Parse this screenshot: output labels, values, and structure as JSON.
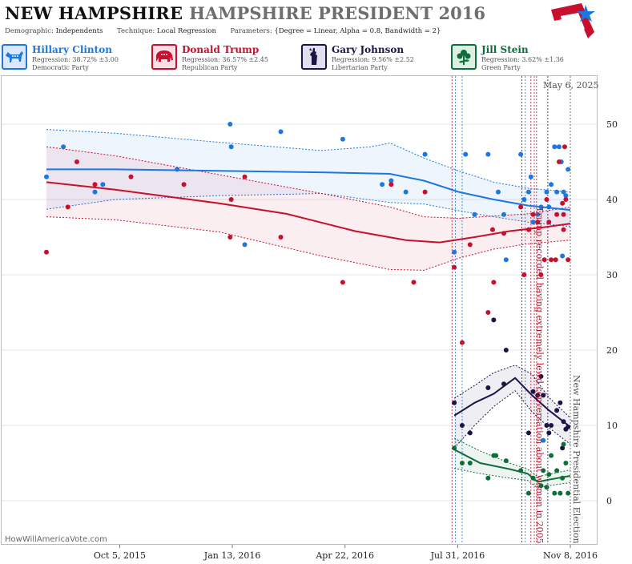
{
  "header": {
    "state": "NEW HAMPSHIRE",
    "race": "HAMPSHIRE PRESIDENT 2016",
    "demographic_key": "Demographic:",
    "demographic_value": "Independents",
    "technique_key": "Technique:",
    "technique_value": "Local Regression",
    "parameters_key": "Parameters:",
    "parameters_value": "{Degree = Linear, Alpha = 0.8, Bandwidth = 2}"
  },
  "candidates": [
    {
      "name": "Hillary Clinton",
      "regression": "Regression: 38.72% ±3.00",
      "party": "Democratic Party",
      "color": "#1a78e0",
      "bg": "#dbe8fb",
      "icon": "donkey-icon"
    },
    {
      "name": "Donald Trump",
      "regression": "Regression: 36.57% ±2.45",
      "party": "Republican Party",
      "color": "#c8102e",
      "bg": "#fbdfe3",
      "icon": "elephant-icon"
    },
    {
      "name": "Gary Johnson",
      "regression": "Regression: 9.56% ±2.52",
      "party": "Libertarian Party",
      "color": "#1b1446",
      "bg": "#e2e0ee",
      "icon": "liberty-statue-icon"
    },
    {
      "name": "Jill Stein",
      "regression": "Regression: 3.62% ±1.36",
      "party": "Green Party",
      "color": "#0e6e3a",
      "bg": "#dcefe3",
      "icon": "flower-icon"
    }
  ],
  "date_label": "May 6, 2025",
  "credit": "HowWillAmericaVote.com",
  "chart_data": {
    "type": "scatter",
    "x_axis": {
      "ticks": [
        "Oct 5, 2015",
        "Jan 13, 2016",
        "Apr 22, 2016",
        "Jul 31, 2016",
        "Nov 8, 2016"
      ],
      "range": [
        "2015-08-01",
        "2016-11-08"
      ]
    },
    "y_axis": {
      "ticks": [
        0,
        10,
        20,
        30,
        40,
        50
      ],
      "range": [
        -5,
        55
      ],
      "side": "right"
    },
    "annotations": [
      {
        "text": "Trump recorded having extremely lewd conversation about women in 2005",
        "date": "2016-10-07",
        "color": "#c8102e"
      },
      {
        "text": "New Hampshire Presidential Election",
        "date": "2016-11-08",
        "color": "#555555"
      }
    ],
    "series": [
      {
        "name": "Hillary Clinton",
        "color": "#1a78e0",
        "points": [
          [
            "2015-08-01",
            43
          ],
          [
            "2015-08-16",
            47
          ],
          [
            "2015-09-13",
            41
          ],
          [
            "2015-09-20",
            42
          ],
          [
            "2015-11-25",
            44
          ],
          [
            "2016-01-11",
            50
          ],
          [
            "2016-01-12",
            47
          ],
          [
            "2016-01-24",
            34
          ],
          [
            "2016-02-25",
            49
          ],
          [
            "2016-04-20",
            48
          ],
          [
            "2016-05-25",
            42
          ],
          [
            "2016-06-02",
            42.5
          ],
          [
            "2016-06-15",
            41
          ],
          [
            "2016-07-02",
            46
          ],
          [
            "2016-07-28",
            33
          ],
          [
            "2016-08-07",
            46
          ],
          [
            "2016-08-15",
            38
          ],
          [
            "2016-08-27",
            46
          ],
          [
            "2016-09-05",
            41
          ],
          [
            "2016-09-10",
            38
          ],
          [
            "2016-09-12",
            32
          ],
          [
            "2016-09-25",
            46
          ],
          [
            "2016-09-28",
            40
          ],
          [
            "2016-10-02",
            41
          ],
          [
            "2016-10-04",
            43
          ],
          [
            "2016-10-06",
            37
          ],
          [
            "2016-10-10",
            38
          ],
          [
            "2016-10-13",
            39
          ],
          [
            "2016-10-15",
            8
          ],
          [
            "2016-10-18",
            41
          ],
          [
            "2016-10-20",
            39
          ],
          [
            "2016-10-22",
            42
          ],
          [
            "2016-10-25",
            47
          ],
          [
            "2016-10-27",
            41
          ],
          [
            "2016-10-29",
            47
          ],
          [
            "2016-10-31",
            45
          ],
          [
            "2016-11-01",
            32.5
          ],
          [
            "2016-11-02",
            41
          ],
          [
            "2016-11-04",
            40.5
          ],
          [
            "2016-11-06",
            44
          ]
        ],
        "trend": [
          [
            "2015-08-01",
            44
          ],
          [
            "2015-10-01",
            44
          ],
          [
            "2016-01-01",
            43.8
          ],
          [
            "2016-04-01",
            43.6
          ],
          [
            "2016-06-01",
            43.4
          ],
          [
            "2016-07-01",
            42.5
          ],
          [
            "2016-08-01",
            41
          ],
          [
            "2016-09-01",
            40
          ],
          [
            "2016-10-01",
            39.2
          ],
          [
            "2016-11-08",
            38.6
          ]
        ],
        "band_upper": [
          [
            "2015-08-01",
            49.3
          ],
          [
            "2015-10-01",
            48.8
          ],
          [
            "2016-01-01",
            47.6
          ],
          [
            "2016-04-01",
            46.5
          ],
          [
            "2016-05-15",
            47
          ],
          [
            "2016-06-01",
            47.5
          ],
          [
            "2016-07-01",
            45.5
          ],
          [
            "2016-08-01",
            43.8
          ],
          [
            "2016-09-01",
            42.3
          ],
          [
            "2016-10-01",
            41.5
          ],
          [
            "2016-11-08",
            41
          ]
        ],
        "band_lower": [
          [
            "2015-08-01",
            38.7
          ],
          [
            "2015-10-01",
            40
          ],
          [
            "2016-01-01",
            40.5
          ],
          [
            "2016-04-01",
            40.8
          ],
          [
            "2016-06-01",
            39.6
          ],
          [
            "2016-07-01",
            39.4
          ],
          [
            "2016-08-01",
            38.5
          ],
          [
            "2016-09-01",
            37.7
          ],
          [
            "2016-10-01",
            37
          ],
          [
            "2016-11-08",
            36.4
          ]
        ]
      },
      {
        "name": "Donald Trump",
        "color": "#c8102e",
        "points": [
          [
            "2015-08-01",
            33
          ],
          [
            "2015-08-20",
            39
          ],
          [
            "2015-08-28",
            45
          ],
          [
            "2015-09-13",
            42
          ],
          [
            "2015-10-15",
            43
          ],
          [
            "2015-12-01",
            42
          ],
          [
            "2016-01-11",
            35
          ],
          [
            "2016-01-12",
            40
          ],
          [
            "2016-01-24",
            43
          ],
          [
            "2016-02-25",
            35
          ],
          [
            "2016-04-20",
            29
          ],
          [
            "2016-06-02",
            42
          ],
          [
            "2016-06-22",
            29
          ],
          [
            "2016-07-02",
            41
          ],
          [
            "2016-07-28",
            31
          ],
          [
            "2016-08-04",
            21
          ],
          [
            "2016-08-11",
            34
          ],
          [
            "2016-08-27",
            25
          ],
          [
            "2016-08-31",
            36
          ],
          [
            "2016-09-01",
            29
          ],
          [
            "2016-09-10",
            35.5
          ],
          [
            "2016-09-25",
            39
          ],
          [
            "2016-09-28",
            30
          ],
          [
            "2016-10-02",
            36
          ],
          [
            "2016-10-06",
            38
          ],
          [
            "2016-10-10",
            37
          ],
          [
            "2016-10-13",
            30
          ],
          [
            "2016-10-16",
            32
          ],
          [
            "2016-10-18",
            40
          ],
          [
            "2016-10-20",
            37
          ],
          [
            "2016-10-22",
            32
          ],
          [
            "2016-10-26",
            32
          ],
          [
            "2016-10-27",
            38
          ],
          [
            "2016-10-29",
            45
          ],
          [
            "2016-11-01",
            39.5
          ],
          [
            "2016-11-02",
            36
          ],
          [
            "2016-11-02",
            38
          ],
          [
            "2016-11-03",
            47
          ],
          [
            "2016-11-04",
            40
          ],
          [
            "2016-11-06",
            32
          ]
        ],
        "trend": [
          [
            "2015-08-01",
            42.3
          ],
          [
            "2015-10-01",
            41.3
          ],
          [
            "2016-01-01",
            39.5
          ],
          [
            "2016-03-01",
            38.1
          ],
          [
            "2016-05-01",
            35.8
          ],
          [
            "2016-06-15",
            34.6
          ],
          [
            "2016-07-15",
            34.3
          ],
          [
            "2016-08-15",
            35
          ],
          [
            "2016-09-15",
            35.8
          ],
          [
            "2016-10-15",
            36.3
          ],
          [
            "2016-11-08",
            36.8
          ]
        ],
        "band_upper": [
          [
            "2015-08-01",
            47
          ],
          [
            "2015-10-01",
            45.8
          ],
          [
            "2016-01-01",
            43.3
          ],
          [
            "2016-04-01",
            40.8
          ],
          [
            "2016-06-01",
            39
          ],
          [
            "2016-07-01",
            37.7
          ],
          [
            "2016-08-01",
            37.5
          ],
          [
            "2016-09-01",
            37.8
          ],
          [
            "2016-10-01",
            38.1
          ],
          [
            "2016-11-08",
            39
          ]
        ],
        "band_lower": [
          [
            "2015-08-01",
            37.7
          ],
          [
            "2015-10-01",
            37.3
          ],
          [
            "2016-01-01",
            35.7
          ],
          [
            "2016-04-01",
            32.5
          ],
          [
            "2016-06-01",
            30.7
          ],
          [
            "2016-07-01",
            30.6
          ],
          [
            "2016-08-01",
            32.2
          ],
          [
            "2016-09-01",
            33.4
          ],
          [
            "2016-10-01",
            34.1
          ],
          [
            "2016-11-08",
            34.6
          ]
        ]
      },
      {
        "name": "Gary Johnson",
        "color": "#1b1446",
        "points": [
          [
            "2016-07-28",
            13
          ],
          [
            "2016-08-04",
            10
          ],
          [
            "2016-08-11",
            9
          ],
          [
            "2016-08-27",
            15
          ],
          [
            "2016-09-01",
            24
          ],
          [
            "2016-09-10",
            15.5
          ],
          [
            "2016-09-12",
            20
          ],
          [
            "2016-10-02",
            9
          ],
          [
            "2016-10-06",
            14.5
          ],
          [
            "2016-10-10",
            14
          ],
          [
            "2016-10-13",
            16.5
          ],
          [
            "2016-10-15",
            14
          ],
          [
            "2016-10-18",
            10
          ],
          [
            "2016-10-20",
            9
          ],
          [
            "2016-10-22",
            10
          ],
          [
            "2016-10-27",
            12
          ],
          [
            "2016-10-30",
            13
          ],
          [
            "2016-11-01",
            7
          ],
          [
            "2016-11-02",
            10.5
          ],
          [
            "2016-11-04",
            9.5
          ],
          [
            "2016-11-06",
            9.8
          ]
        ],
        "trend": [
          [
            "2016-07-28",
            11.3
          ],
          [
            "2016-08-15",
            13
          ],
          [
            "2016-09-01",
            14.2
          ],
          [
            "2016-09-20",
            16.3
          ],
          [
            "2016-10-05",
            14
          ],
          [
            "2016-10-20",
            12
          ],
          [
            "2016-11-08",
            9.8
          ]
        ],
        "band_upper": [
          [
            "2016-07-28",
            13.6
          ],
          [
            "2016-08-15",
            15.3
          ],
          [
            "2016-09-01",
            17
          ],
          [
            "2016-09-20",
            18
          ],
          [
            "2016-10-05",
            16.8
          ],
          [
            "2016-10-20",
            13.7
          ],
          [
            "2016-11-08",
            11
          ]
        ],
        "band_lower": [
          [
            "2016-07-28",
            7
          ],
          [
            "2016-08-15",
            10
          ],
          [
            "2016-09-01",
            12.5
          ],
          [
            "2016-09-20",
            14.6
          ],
          [
            "2016-10-05",
            11.8
          ],
          [
            "2016-10-20",
            9.7
          ],
          [
            "2016-11-08",
            7.5
          ]
        ]
      },
      {
        "name": "Jill Stein",
        "color": "#0e6e3a",
        "points": [
          [
            "2016-07-28",
            7
          ],
          [
            "2016-08-04",
            5
          ],
          [
            "2016-08-11",
            5
          ],
          [
            "2016-08-27",
            3
          ],
          [
            "2016-09-01",
            6
          ],
          [
            "2016-09-03",
            6
          ],
          [
            "2016-09-12",
            5.3
          ],
          [
            "2016-09-25",
            4
          ],
          [
            "2016-10-02",
            1
          ],
          [
            "2016-10-06",
            3
          ],
          [
            "2016-10-13",
            2
          ],
          [
            "2016-10-15",
            4
          ],
          [
            "2016-10-18",
            1.8
          ],
          [
            "2016-10-20",
            3.5
          ],
          [
            "2016-10-22",
            6
          ],
          [
            "2016-10-25",
            1
          ],
          [
            "2016-10-27",
            4
          ],
          [
            "2016-10-30",
            1
          ],
          [
            "2016-11-01",
            3
          ],
          [
            "2016-11-04",
            5
          ],
          [
            "2016-11-06",
            1
          ],
          [
            "2016-11-02",
            7.5
          ]
        ],
        "trend": [
          [
            "2016-07-28",
            6.8
          ],
          [
            "2016-08-20",
            5
          ],
          [
            "2016-09-15",
            4.2
          ],
          [
            "2016-10-01",
            3.6
          ],
          [
            "2016-10-10",
            2.5
          ],
          [
            "2016-10-20",
            2.8
          ],
          [
            "2016-11-08",
            3.3
          ]
        ],
        "band_upper": [
          [
            "2016-07-28",
            8.3
          ],
          [
            "2016-08-20",
            6.6
          ],
          [
            "2016-09-15",
            5
          ],
          [
            "2016-10-01",
            4.2
          ],
          [
            "2016-10-10",
            3.2
          ],
          [
            "2016-10-20",
            3.5
          ],
          [
            "2016-11-08",
            4.1
          ]
        ],
        "band_lower": [
          [
            "2016-07-28",
            4.3
          ],
          [
            "2016-08-20",
            3.6
          ],
          [
            "2016-09-15",
            3
          ],
          [
            "2016-10-01",
            2.7
          ],
          [
            "2016-10-10",
            1.7
          ],
          [
            "2016-10-20",
            2
          ],
          [
            "2016-11-08",
            2.4
          ]
        ]
      }
    ],
    "event_lines": [
      {
        "date": "2016-07-26",
        "color": "#c8102e"
      },
      {
        "date": "2016-07-29",
        "color": "#1a78e0"
      },
      {
        "date": "2016-08-04",
        "color": "#1a78e0"
      },
      {
        "date": "2016-09-26",
        "color": "#1b1446"
      },
      {
        "date": "2016-09-29",
        "color": "#1a78e0"
      },
      {
        "date": "2016-10-04",
        "color": "#c8102e"
      },
      {
        "date": "2016-10-07",
        "color": "#c8102e"
      },
      {
        "date": "2016-10-09",
        "color": "#c8102e"
      },
      {
        "date": "2016-10-19",
        "color": "#1b1446"
      },
      {
        "date": "2016-11-08",
        "color": "#555555"
      }
    ]
  }
}
